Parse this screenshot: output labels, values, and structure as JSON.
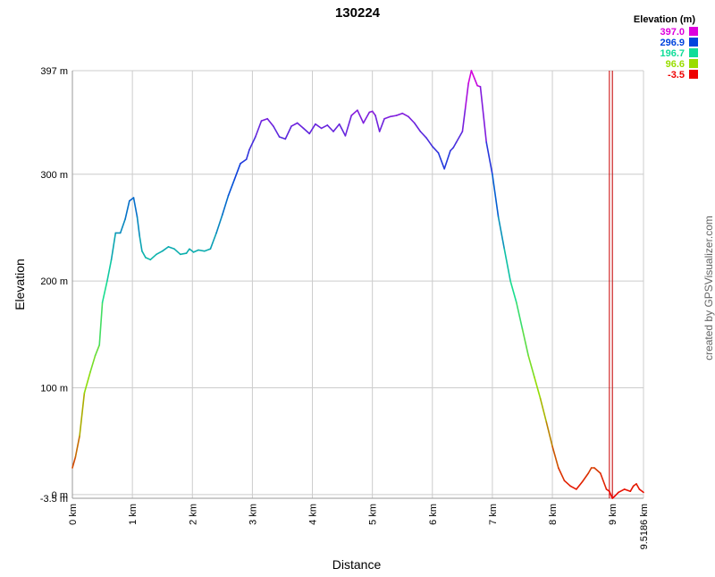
{
  "chart_data": {
    "type": "line",
    "title": "130224",
    "xlabel": "Distance",
    "ylabel": "Elevation",
    "credit": "created by GPSVisualizer.com",
    "xlim": [
      0,
      9.5186
    ],
    "ylim": [
      -3.5,
      397
    ],
    "y_ticks": [
      {
        "value": 397,
        "label": "397 m"
      },
      {
        "value": 300,
        "label": "300 m"
      },
      {
        "value": 200,
        "label": "200 m"
      },
      {
        "value": 100,
        "label": "100 m"
      },
      {
        "value": 0,
        "label": "0 m"
      },
      {
        "value": -3.5,
        "label": "-3.5 m"
      }
    ],
    "x_ticks": [
      {
        "value": 0,
        "label": "0 km"
      },
      {
        "value": 1,
        "label": "1 km"
      },
      {
        "value": 2,
        "label": "2 km"
      },
      {
        "value": 3,
        "label": "3 km"
      },
      {
        "value": 4,
        "label": "4 km"
      },
      {
        "value": 5,
        "label": "5 km"
      },
      {
        "value": 6,
        "label": "6 km"
      },
      {
        "value": 7,
        "label": "7 km"
      },
      {
        "value": 8,
        "label": "8 km"
      },
      {
        "value": 9,
        "label": "9 km"
      },
      {
        "value": 9.5186,
        "label": "9.5186 km"
      }
    ],
    "grid": true,
    "marker_lines_km": [
      8.95,
      9.0
    ],
    "marker_color": "#cc0000",
    "color_legend": {
      "title": "Elevation (m)",
      "position": "top-right",
      "entries": [
        {
          "label": "397.0",
          "color": "#dd00dd"
        },
        {
          "label": "296.9",
          "color": "#0044dd"
        },
        {
          "label": "196.7",
          "color": "#11dd99"
        },
        {
          "label": "96.6",
          "color": "#99dd00"
        },
        {
          "label": "-3.5",
          "color": "#ee0000"
        }
      ]
    },
    "series": [
      {
        "x": [
          0,
          0.05,
          0.12,
          0.2,
          0.3,
          0.38,
          0.45,
          0.5,
          0.58,
          0.65,
          0.72,
          0.8,
          0.88,
          0.95,
          1.02,
          1.08,
          1.12,
          1.16,
          1.22,
          1.3,
          1.4,
          1.5,
          1.6,
          1.7,
          1.8,
          1.9,
          1.95,
          2.02,
          2.1,
          2.2,
          2.3,
          2.4,
          2.5,
          2.6,
          2.7,
          2.8,
          2.9,
          2.95,
          3.05,
          3.15,
          3.25,
          3.35,
          3.45,
          3.55,
          3.65,
          3.75,
          3.85,
          3.95,
          4.05,
          4.15,
          4.25,
          4.35,
          4.45,
          4.55,
          4.65,
          4.75,
          4.85,
          4.95,
          5.0,
          5.05,
          5.12,
          5.2,
          5.3,
          5.4,
          5.5,
          5.6,
          5.7,
          5.8,
          5.9,
          6.0,
          6.1,
          6.2,
          6.3,
          6.35,
          6.4,
          6.5,
          6.55,
          6.6,
          6.65,
          6.7,
          6.75,
          6.8,
          6.9,
          7.0,
          7.1,
          7.2,
          7.3,
          7.4,
          7.5,
          7.6,
          7.7,
          7.8,
          7.9,
          8.0,
          8.1,
          8.2,
          8.3,
          8.4,
          8.5,
          8.6,
          8.65,
          8.7,
          8.8,
          8.9,
          8.95,
          9.0,
          9.05,
          9.1,
          9.2,
          9.3,
          9.35,
          9.4,
          9.45,
          9.5186
        ],
        "y": [
          25,
          35,
          55,
          95,
          115,
          130,
          140,
          180,
          200,
          220,
          245,
          245,
          258,
          275,
          278,
          260,
          242,
          228,
          222,
          220,
          225,
          228,
          232,
          230,
          225,
          226,
          230,
          227,
          229,
          228,
          230,
          245,
          262,
          280,
          295,
          310,
          314,
          323,
          335,
          350,
          352,
          345,
          335,
          333,
          345,
          348,
          343,
          338,
          347,
          343,
          346,
          340,
          347,
          336,
          355,
          360,
          348,
          358,
          359,
          355,
          340,
          352,
          354,
          355,
          357,
          354,
          348,
          340,
          334,
          326,
          320,
          305,
          322,
          325,
          330,
          340,
          362,
          385,
          397,
          390,
          383,
          382,
          330,
          300,
          260,
          230,
          200,
          180,
          155,
          130,
          110,
          90,
          68,
          45,
          25,
          13,
          8,
          5,
          12,
          20,
          25,
          25,
          20,
          5,
          3,
          -3.5,
          -1,
          2,
          5,
          3,
          8,
          10,
          5,
          2
        ]
      }
    ]
  }
}
